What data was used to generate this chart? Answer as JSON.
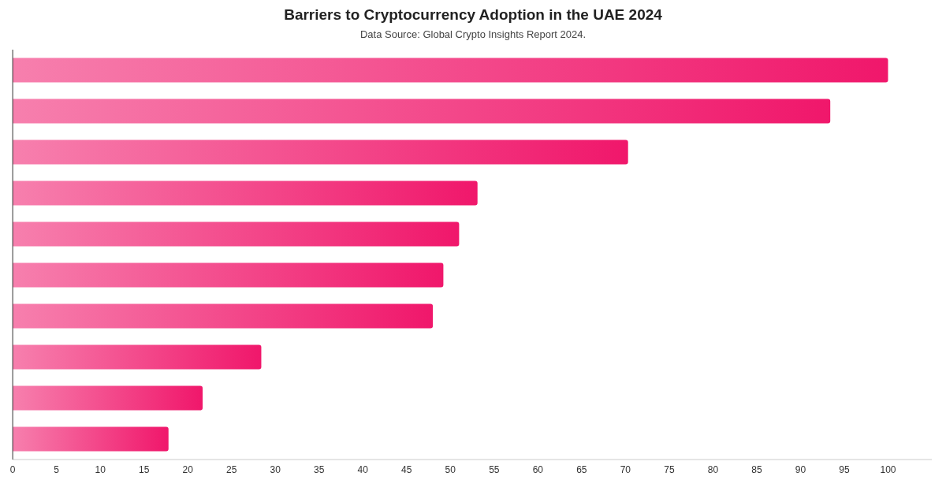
{
  "chart_data": {
    "type": "bar",
    "orientation": "horizontal",
    "title": "Barriers to Cryptocurrency Adoption in the UAE 2024",
    "subtitle": "Data Source: Global Crypto Insights Report 2024.",
    "categories": [
      null,
      null,
      null,
      null,
      null,
      null,
      null,
      null,
      null,
      null
    ],
    "values": [
      100,
      93.4,
      70.3,
      53.1,
      51.0,
      49.2,
      48.0,
      28.4,
      21.7,
      17.8
    ],
    "color": "#f0176b",
    "xlim": [
      0,
      105
    ],
    "xticks": [
      0,
      5,
      10,
      15,
      20,
      25,
      30,
      35,
      40,
      45,
      50,
      55,
      60,
      65,
      70,
      75,
      80,
      85,
      90,
      95,
      100
    ],
    "grid": false,
    "legend": false
  }
}
